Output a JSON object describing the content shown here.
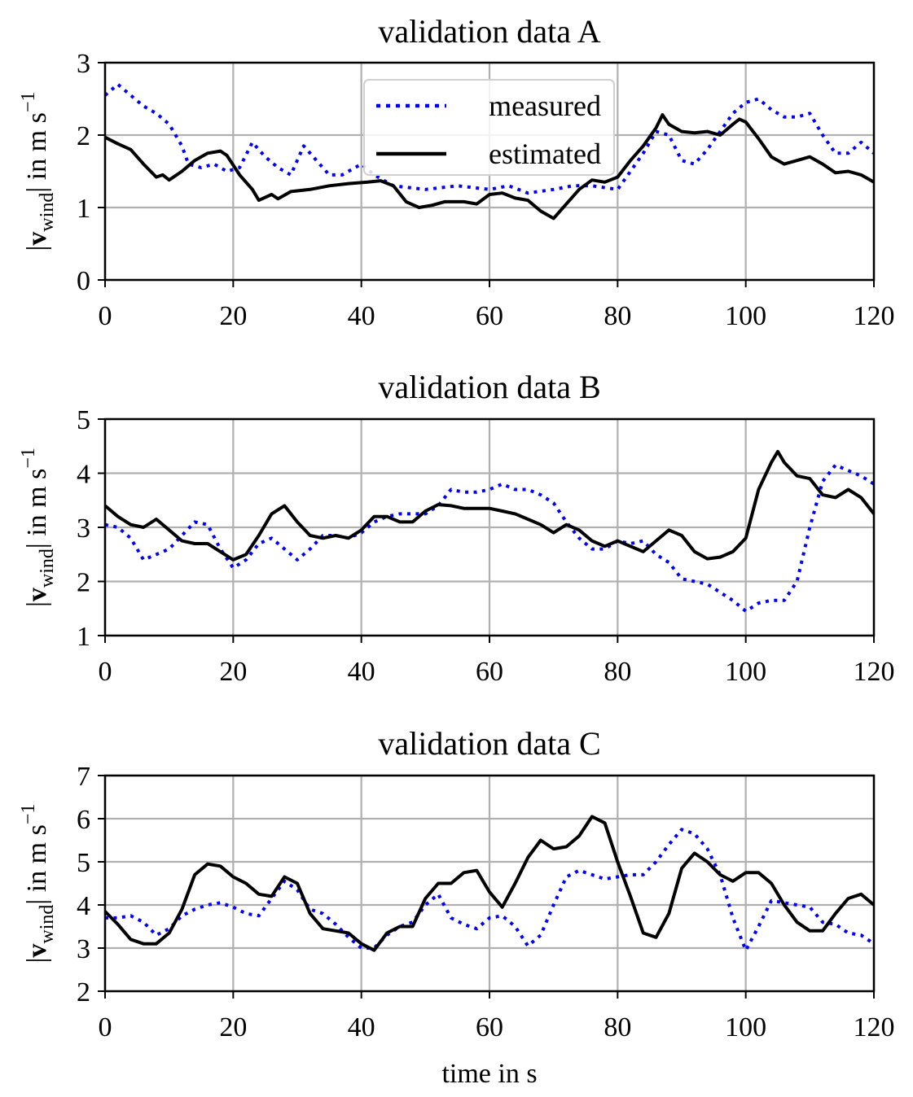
{
  "chart_data": [
    {
      "type": "line",
      "title": "validation data A",
      "xlabel": "",
      "ylabel": {
        "open": "|",
        "vec": "v",
        "sub": "wind",
        "close": "| in m s",
        "sup": "−1"
      },
      "xlim": [
        0,
        120
      ],
      "ylim": [
        0,
        3
      ],
      "xticks": [
        0,
        20,
        40,
        60,
        80,
        100,
        120
      ],
      "yticks": [
        0,
        1,
        2,
        3
      ],
      "grid": true,
      "legend": {
        "placement": "upper-center",
        "entries": [
          "measured",
          "estimated"
        ]
      },
      "series": [
        {
          "name": "measured",
          "style": "dotted",
          "color": "#0000ff",
          "x": [
            0,
            2,
            4,
            6,
            8,
            10,
            12,
            13,
            15,
            17,
            19,
            21,
            23,
            25,
            27,
            29,
            31,
            33,
            35,
            37,
            40,
            42,
            45,
            50,
            55,
            60,
            63,
            66,
            70,
            73,
            76,
            80,
            82,
            84,
            86,
            88,
            90,
            92,
            94,
            96,
            98,
            100,
            102,
            104,
            106,
            108,
            110,
            112,
            114,
            116,
            118,
            120
          ],
          "y": [
            2.55,
            2.7,
            2.55,
            2.4,
            2.3,
            2.15,
            1.85,
            1.6,
            1.55,
            1.6,
            1.5,
            1.55,
            1.9,
            1.7,
            1.55,
            1.45,
            1.85,
            1.65,
            1.45,
            1.45,
            1.6,
            1.45,
            1.3,
            1.25,
            1.3,
            1.25,
            1.3,
            1.2,
            1.25,
            1.3,
            1.3,
            1.25,
            1.5,
            1.75,
            2.05,
            2.0,
            1.65,
            1.6,
            1.8,
            2.05,
            2.3,
            2.45,
            2.5,
            2.35,
            2.25,
            2.25,
            2.3,
            2.0,
            1.75,
            1.75,
            1.9,
            1.75
          ]
        },
        {
          "name": "estimated",
          "style": "solid",
          "color": "#000000",
          "x": [
            0,
            2,
            4,
            6,
            8,
            9,
            10,
            12,
            14,
            16,
            18,
            19,
            21,
            23,
            24,
            26,
            27,
            29,
            32,
            35,
            38,
            41,
            43,
            45,
            47,
            49,
            51,
            53,
            56,
            58,
            60,
            62,
            64,
            66,
            68,
            70,
            72,
            74,
            76,
            78,
            80,
            82,
            84,
            86,
            87,
            88,
            90,
            92,
            94,
            96,
            98,
            99,
            100,
            102,
            104,
            106,
            108,
            110,
            112,
            114,
            116,
            118,
            120
          ],
          "y": [
            1.97,
            1.88,
            1.8,
            1.6,
            1.42,
            1.45,
            1.38,
            1.5,
            1.65,
            1.75,
            1.78,
            1.72,
            1.45,
            1.25,
            1.1,
            1.18,
            1.12,
            1.22,
            1.25,
            1.3,
            1.33,
            1.35,
            1.37,
            1.3,
            1.08,
            1.0,
            1.03,
            1.08,
            1.08,
            1.05,
            1.18,
            1.2,
            1.13,
            1.1,
            0.95,
            0.85,
            1.05,
            1.25,
            1.38,
            1.35,
            1.42,
            1.65,
            1.85,
            2.1,
            2.28,
            2.15,
            2.05,
            2.03,
            2.05,
            2.0,
            2.15,
            2.22,
            2.18,
            1.95,
            1.7,
            1.6,
            1.65,
            1.7,
            1.6,
            1.48,
            1.5,
            1.45,
            1.35
          ]
        }
      ]
    },
    {
      "type": "line",
      "title": "validation data B",
      "xlabel": "",
      "ylabel": {
        "open": "|",
        "vec": "v",
        "sub": "wind",
        "close": "| in m s",
        "sup": "−1"
      },
      "xlim": [
        0,
        120
      ],
      "ylim": [
        1,
        5
      ],
      "xticks": [
        0,
        20,
        40,
        60,
        80,
        100,
        120
      ],
      "yticks": [
        1,
        2,
        3,
        4,
        5
      ],
      "grid": true,
      "series": [
        {
          "name": "measured",
          "style": "dotted",
          "color": "#0000ff",
          "x": [
            0,
            2,
            4,
            6,
            8,
            10,
            12,
            14,
            16,
            18,
            20,
            22,
            24,
            26,
            28,
            30,
            32,
            34,
            36,
            38,
            40,
            42,
            44,
            46,
            48,
            50,
            52,
            54,
            56,
            58,
            60,
            62,
            64,
            66,
            68,
            70,
            72,
            74,
            76,
            78,
            80,
            82,
            84,
            86,
            88,
            90,
            92,
            94,
            96,
            98,
            100,
            102,
            104,
            106,
            108,
            110,
            112,
            114,
            116,
            118,
            120
          ],
          "y": [
            3.05,
            3.0,
            2.8,
            2.4,
            2.5,
            2.6,
            2.85,
            3.1,
            3.05,
            2.6,
            2.25,
            2.4,
            2.7,
            2.8,
            2.6,
            2.4,
            2.6,
            2.85,
            2.85,
            2.8,
            2.9,
            3.1,
            3.2,
            3.25,
            3.25,
            3.25,
            3.4,
            3.7,
            3.65,
            3.65,
            3.7,
            3.8,
            3.7,
            3.7,
            3.6,
            3.45,
            3.1,
            2.8,
            2.6,
            2.6,
            2.75,
            2.7,
            2.75,
            2.5,
            2.35,
            2.05,
            2.0,
            1.95,
            1.8,
            1.65,
            1.45,
            1.6,
            1.65,
            1.65,
            2.0,
            3.0,
            3.85,
            4.15,
            4.05,
            3.95,
            3.8
          ]
        },
        {
          "name": "estimated",
          "style": "solid",
          "color": "#000000",
          "x": [
            0,
            2,
            4,
            6,
            8,
            10,
            12,
            14,
            16,
            18,
            20,
            22,
            24,
            26,
            28,
            30,
            32,
            34,
            36,
            38,
            40,
            42,
            44,
            46,
            48,
            50,
            52,
            54,
            56,
            58,
            60,
            62,
            64,
            66,
            68,
            70,
            72,
            74,
            76,
            78,
            80,
            82,
            84,
            86,
            88,
            90,
            92,
            94,
            96,
            98,
            100,
            102,
            104,
            105,
            106,
            108,
            110,
            112,
            114,
            116,
            118,
            120
          ],
          "y": [
            3.4,
            3.2,
            3.05,
            3.0,
            3.15,
            2.95,
            2.75,
            2.7,
            2.7,
            2.55,
            2.4,
            2.5,
            2.85,
            3.25,
            3.4,
            3.1,
            2.85,
            2.8,
            2.85,
            2.8,
            2.95,
            3.2,
            3.2,
            3.1,
            3.1,
            3.3,
            3.42,
            3.4,
            3.35,
            3.35,
            3.35,
            3.3,
            3.25,
            3.15,
            3.05,
            2.9,
            3.05,
            2.95,
            2.75,
            2.65,
            2.75,
            2.65,
            2.55,
            2.75,
            2.95,
            2.85,
            2.55,
            2.42,
            2.45,
            2.55,
            2.8,
            3.7,
            4.2,
            4.4,
            4.2,
            3.95,
            3.9,
            3.6,
            3.55,
            3.7,
            3.55,
            3.25
          ]
        }
      ]
    },
    {
      "type": "line",
      "title": "validation data C",
      "xlabel": "time in s",
      "ylabel": {
        "open": "|",
        "vec": "v",
        "sub": "wind",
        "close": "| in m s",
        "sup": "−1"
      },
      "xlim": [
        0,
        120
      ],
      "ylim": [
        2,
        7
      ],
      "xticks": [
        0,
        20,
        40,
        60,
        80,
        100,
        120
      ],
      "yticks": [
        2,
        3,
        4,
        5,
        6,
        7
      ],
      "grid": true,
      "series": [
        {
          "name": "measured",
          "style": "dotted",
          "color": "#0000ff",
          "x": [
            0,
            2,
            4,
            6,
            8,
            10,
            12,
            14,
            16,
            18,
            20,
            22,
            24,
            26,
            28,
            30,
            32,
            34,
            36,
            38,
            40,
            42,
            44,
            46,
            48,
            50,
            52,
            54,
            56,
            58,
            60,
            62,
            64,
            66,
            68,
            70,
            72,
            74,
            76,
            78,
            80,
            82,
            84,
            86,
            88,
            90,
            92,
            94,
            96,
            98,
            100,
            102,
            104,
            106,
            108,
            110,
            112,
            114,
            116,
            118,
            120
          ],
          "y": [
            3.7,
            3.7,
            3.75,
            3.6,
            3.3,
            3.45,
            3.75,
            3.9,
            4.0,
            4.05,
            3.95,
            3.8,
            3.75,
            4.15,
            4.55,
            4.35,
            3.9,
            3.8,
            3.55,
            3.25,
            3.0,
            3.0,
            3.3,
            3.5,
            3.6,
            4.0,
            4.25,
            3.7,
            3.55,
            3.45,
            3.7,
            3.75,
            3.5,
            3.05,
            3.3,
            4.0,
            4.65,
            4.8,
            4.7,
            4.6,
            4.65,
            4.7,
            4.7,
            5.0,
            5.4,
            5.75,
            5.65,
            5.3,
            4.7,
            3.7,
            2.95,
            3.5,
            4.1,
            4.05,
            4.0,
            3.95,
            3.6,
            3.55,
            3.35,
            3.3,
            3.1
          ]
        },
        {
          "name": "estimated",
          "style": "solid",
          "color": "#000000",
          "x": [
            0,
            2,
            4,
            6,
            8,
            10,
            12,
            14,
            16,
            18,
            20,
            22,
            24,
            26,
            28,
            30,
            32,
            34,
            36,
            38,
            40,
            42,
            44,
            46,
            48,
            50,
            52,
            54,
            56,
            58,
            60,
            62,
            64,
            66,
            68,
            70,
            72,
            74,
            76,
            78,
            80,
            82,
            84,
            86,
            88,
            90,
            92,
            94,
            96,
            98,
            100,
            102,
            104,
            106,
            108,
            110,
            112,
            114,
            116,
            118,
            120
          ],
          "y": [
            3.85,
            3.55,
            3.2,
            3.1,
            3.1,
            3.35,
            3.9,
            4.7,
            4.95,
            4.9,
            4.65,
            4.5,
            4.25,
            4.2,
            4.65,
            4.5,
            3.8,
            3.45,
            3.4,
            3.35,
            3.1,
            2.95,
            3.35,
            3.5,
            3.5,
            4.15,
            4.5,
            4.5,
            4.75,
            4.8,
            4.3,
            3.95,
            4.5,
            5.1,
            5.5,
            5.3,
            5.35,
            5.6,
            6.05,
            5.9,
            5.0,
            4.2,
            3.35,
            3.25,
            3.8,
            4.85,
            5.2,
            5.0,
            4.7,
            4.55,
            4.75,
            4.75,
            4.5,
            4.0,
            3.6,
            3.4,
            3.4,
            3.8,
            4.15,
            4.25,
            4.0
          ]
        }
      ]
    }
  ]
}
